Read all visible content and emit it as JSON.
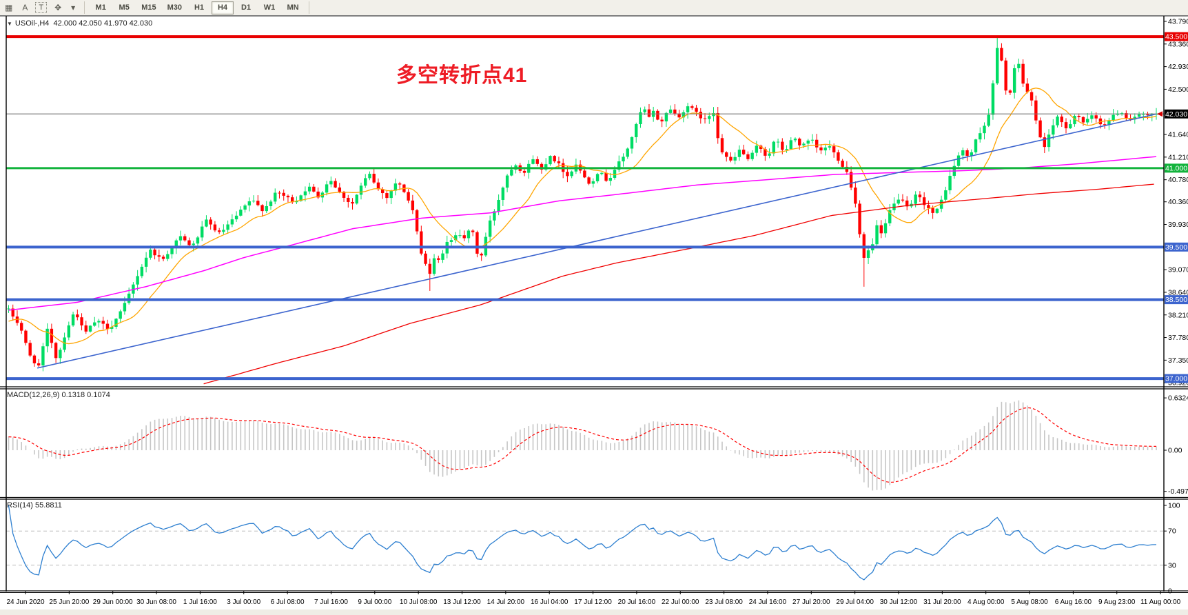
{
  "toolbar": {
    "icons": [
      {
        "name": "grid-properties-icon",
        "glyph": "▦"
      },
      {
        "name": "annotate-letter-icon",
        "glyph": "A"
      },
      {
        "name": "textbox-icon",
        "glyph": "T",
        "boxed": true
      },
      {
        "name": "cursor-arrows-icon",
        "glyph": "✥"
      },
      {
        "name": "icon-dropdown-arrow",
        "glyph": "▾"
      }
    ],
    "timeframes": [
      "M1",
      "M5",
      "M15",
      "M30",
      "H1",
      "H4",
      "D1",
      "W1",
      "MN"
    ],
    "active_timeframe": "H4"
  },
  "symbol_bar": {
    "arrow": "▼",
    "text": "USOil-,H4  42.000 42.050 41.970 42.030"
  },
  "annotation": {
    "text": "多空转折点41",
    "color": "#EE1C25"
  },
  "indicators": {
    "macd": {
      "label": "MACD(12,26,9) 0.1318 0.1074",
      "params": [
        12,
        26,
        9
      ],
      "value": 0.1318,
      "signal_value": 0.1074,
      "hist_color": "#C6C6C6",
      "signal_color": "#FF0000",
      "axis_ticks": [
        {
          "label": "0.6324",
          "value": 0.6324
        },
        {
          "label": "0.00",
          "value": 0
        },
        {
          "label": "-0.497",
          "value": -0.497
        }
      ]
    },
    "rsi": {
      "label": "RSI(14) 55.8811",
      "period": 14,
      "value": 55.8811,
      "line_color": "#2D7FD0",
      "level_line_color": "#BBBBBB",
      "levels": [
        70,
        30
      ],
      "axis_ticks": [
        {
          "label": "100",
          "value": 100
        },
        {
          "label": "70",
          "value": 70
        },
        {
          "label": "30",
          "value": 30
        },
        {
          "label": "0",
          "value": 0
        }
      ]
    }
  },
  "chart_data": {
    "type": "candlestick",
    "symbol": "USOil-",
    "timeframe": "H4",
    "current_ohlc": {
      "open": "42.000",
      "high": "42.050",
      "low": "41.970",
      "close": "42.030"
    },
    "bars": 268,
    "up_color": "#00DC64",
    "down_color": "#FF0000",
    "price_axis_ticks": [
      {
        "label": "43.790",
        "value": 43.79
      },
      {
        "label": "43.360",
        "value": 43.36
      },
      {
        "label": "42.930",
        "value": 42.93
      },
      {
        "label": "42.500",
        "value": 42.5
      },
      {
        "label": "41.640",
        "value": 41.64
      },
      {
        "label": "41.210",
        "value": 41.21
      },
      {
        "label": "40.780",
        "value": 40.78
      },
      {
        "label": "40.360",
        "value": 40.36
      },
      {
        "label": "39.930",
        "value": 39.93
      },
      {
        "label": "39.070",
        "value": 39.07
      },
      {
        "label": "38.640",
        "value": 38.64
      },
      {
        "label": "38.210",
        "value": 38.21
      },
      {
        "label": "37.780",
        "value": 37.78
      },
      {
        "label": "37.350",
        "value": 37.35
      },
      {
        "label": "36.920",
        "value": 36.92
      }
    ],
    "price_badges": [
      {
        "label": "43.500",
        "value": 43.5,
        "color": "#E80000"
      },
      {
        "label": "42.030",
        "value": 42.03,
        "color": "#000000"
      },
      {
        "label": "41.000",
        "value": 41.0,
        "color": "#12B33C"
      },
      {
        "label": "39.500",
        "value": 39.5,
        "color": "#3C64CE"
      },
      {
        "label": "38.500",
        "value": 38.5,
        "color": "#3C64CE"
      },
      {
        "label": "37.000",
        "value": 37.0,
        "color": "#3C64CE"
      }
    ],
    "hlines": [
      {
        "price": 43.5,
        "color": "#E80000",
        "w": 4
      },
      {
        "price": 42.03,
        "color": "#808080",
        "w": 1
      },
      {
        "price": 41.0,
        "color": "#12B33C",
        "w": 3
      },
      {
        "price": 39.5,
        "color": "#3C64CE",
        "w": 4
      },
      {
        "price": 38.5,
        "color": "#3C64CE",
        "w": 4
      },
      {
        "price": 37.0,
        "color": "#3C64CE",
        "w": 4
      }
    ],
    "trendline": {
      "from_frac": 0.025,
      "from_price": 37.2,
      "to_frac": 1.0,
      "to_price": 42.03,
      "color": "#3C64CE"
    },
    "moving_averages": {
      "orange": {
        "color": "#FFA500",
        "type": "sma",
        "period": 13
      },
      "magenta": {
        "color": "#FF00FF",
        "points": [
          [
            0,
            38.3
          ],
          [
            0.06,
            38.45
          ],
          [
            0.12,
            38.75
          ],
          [
            0.17,
            39.05
          ],
          [
            0.205,
            39.3
          ],
          [
            0.24,
            39.5
          ],
          [
            0.3,
            39.85
          ],
          [
            0.36,
            40.05
          ],
          [
            0.42,
            40.15
          ],
          [
            0.48,
            40.38
          ],
          [
            0.53,
            40.5
          ],
          [
            0.6,
            40.68
          ],
          [
            0.66,
            40.78
          ],
          [
            0.72,
            40.88
          ],
          [
            0.78,
            40.92
          ],
          [
            0.83,
            40.95
          ],
          [
            0.88,
            41
          ],
          [
            0.93,
            41.08
          ],
          [
            1,
            41.22
          ]
        ]
      },
      "red": {
        "color": "#F00000",
        "points": [
          [
            0.17,
            36.9
          ],
          [
            0.235,
            37.3
          ],
          [
            0.292,
            37.62
          ],
          [
            0.35,
            38.05
          ],
          [
            0.411,
            38.4
          ],
          [
            0.483,
            38.95
          ],
          [
            0.53,
            39.2
          ],
          [
            0.6,
            39.5
          ],
          [
            0.65,
            39.72
          ],
          [
            0.717,
            40.1
          ],
          [
            0.787,
            40.3
          ],
          [
            0.84,
            40.4
          ],
          [
            0.9,
            40.52
          ],
          [
            0.95,
            40.6
          ],
          [
            1,
            40.7
          ]
        ]
      }
    },
    "close_waypoints": [
      [
        0,
        38.3
      ],
      [
        0.01,
        38
      ],
      [
        0.018,
        37.45
      ],
      [
        0.026,
        37.22
      ],
      [
        0.034,
        37.95
      ],
      [
        0.042,
        37.35
      ],
      [
        0.05,
        37.9
      ],
      [
        0.058,
        38.3
      ],
      [
        0.066,
        37.85
      ],
      [
        0.076,
        38.1
      ],
      [
        0.088,
        37.95
      ],
      [
        0.1,
        38.35
      ],
      [
        0.112,
        38.95
      ],
      [
        0.123,
        39.45
      ],
      [
        0.134,
        39.25
      ],
      [
        0.149,
        39.7
      ],
      [
        0.16,
        39.5
      ],
      [
        0.172,
        40
      ],
      [
        0.184,
        39.75
      ],
      [
        0.199,
        40.1
      ],
      [
        0.211,
        40.4
      ],
      [
        0.222,
        40.2
      ],
      [
        0.234,
        40.55
      ],
      [
        0.249,
        40.35
      ],
      [
        0.261,
        40.65
      ],
      [
        0.27,
        40.45
      ],
      [
        0.28,
        40.8
      ],
      [
        0.288,
        40.55
      ],
      [
        0.299,
        40.3
      ],
      [
        0.307,
        40.65
      ],
      [
        0.314,
        40.9
      ],
      [
        0.322,
        40.6
      ],
      [
        0.33,
        40.45
      ],
      [
        0.338,
        40.75
      ],
      [
        0.345,
        40.55
      ],
      [
        0.353,
        40.15
      ],
      [
        0.357,
        39.6
      ],
      [
        0.361,
        39.3
      ],
      [
        0.368,
        38.95
      ],
      [
        0.372,
        39.4
      ],
      [
        0.376,
        39.15
      ],
      [
        0.38,
        39.6
      ],
      [
        0.384,
        39.55
      ],
      [
        0.391,
        39.8
      ],
      [
        0.399,
        39.65
      ],
      [
        0.403,
        39.95
      ],
      [
        0.407,
        39.45
      ],
      [
        0.411,
        39.25
      ],
      [
        0.418,
        39.9
      ],
      [
        0.426,
        40.35
      ],
      [
        0.434,
        40.85
      ],
      [
        0.441,
        41.1
      ],
      [
        0.449,
        40.9
      ],
      [
        0.457,
        41.2
      ],
      [
        0.464,
        40.95
      ],
      [
        0.472,
        41.25
      ],
      [
        0.48,
        41.05
      ],
      [
        0.487,
        40.85
      ],
      [
        0.495,
        41.1
      ],
      [
        0.499,
        40.9
      ],
      [
        0.507,
        40.7
      ],
      [
        0.514,
        40.95
      ],
      [
        0.522,
        40.75
      ],
      [
        0.53,
        41.05
      ],
      [
        0.537,
        41.25
      ],
      [
        0.545,
        41.7
      ],
      [
        0.549,
        41.95
      ],
      [
        0.553,
        42.2
      ],
      [
        0.557,
        41.9
      ],
      [
        0.561,
        42.1
      ],
      [
        0.568,
        41.85
      ],
      [
        0.576,
        42.15
      ],
      [
        0.584,
        41.95
      ],
      [
        0.591,
        42.2
      ],
      [
        0.599,
        42.05
      ],
      [
        0.607,
        41.9
      ],
      [
        0.614,
        42.1
      ],
      [
        0.618,
        41.6
      ],
      [
        0.622,
        41.3
      ],
      [
        0.63,
        41.1
      ],
      [
        0.637,
        41.35
      ],
      [
        0.645,
        41.15
      ],
      [
        0.653,
        41.45
      ],
      [
        0.661,
        41.2
      ],
      [
        0.668,
        41.55
      ],
      [
        0.676,
        41.3
      ],
      [
        0.684,
        41.6
      ],
      [
        0.691,
        41.4
      ],
      [
        0.699,
        41.55
      ],
      [
        0.707,
        41.3
      ],
      [
        0.714,
        41.45
      ],
      [
        0.722,
        41.2
      ],
      [
        0.73,
        40.95
      ],
      [
        0.737,
        40.45
      ],
      [
        0.741,
        39.85
      ],
      [
        0.745,
        39.3
      ],
      [
        0.753,
        39.55
      ],
      [
        0.757,
        39.95
      ],
      [
        0.761,
        39.7
      ],
      [
        0.768,
        40.2
      ],
      [
        0.776,
        40.45
      ],
      [
        0.784,
        40.2
      ],
      [
        0.791,
        40.5
      ],
      [
        0.799,
        40.3
      ],
      [
        0.807,
        40.1
      ],
      [
        0.814,
        40.45
      ],
      [
        0.822,
        40.95
      ],
      [
        0.83,
        41.35
      ],
      [
        0.837,
        41.2
      ],
      [
        0.845,
        41.65
      ],
      [
        0.853,
        41.9
      ],
      [
        0.857,
        42.45
      ],
      [
        0.861,
        43.3
      ],
      [
        0.865,
        43.05
      ],
      [
        0.868,
        42.55
      ],
      [
        0.872,
        42.35
      ],
      [
        0.876,
        42.85
      ],
      [
        0.88,
        43
      ],
      [
        0.884,
        42.6
      ],
      [
        0.891,
        42.3
      ],
      [
        0.895,
        41.95
      ],
      [
        0.899,
        41.55
      ],
      [
        0.903,
        41.4
      ],
      [
        0.907,
        41.7
      ],
      [
        0.914,
        41.95
      ],
      [
        0.922,
        41.75
      ],
      [
        0.93,
        42.05
      ],
      [
        0.937,
        41.85
      ],
      [
        0.945,
        42
      ],
      [
        0.953,
        41.82
      ],
      [
        0.961,
        41.95
      ],
      [
        0.968,
        42.1
      ],
      [
        0.976,
        41.92
      ],
      [
        0.984,
        42.02
      ],
      [
        0.992,
        41.98
      ],
      [
        1,
        42.03
      ]
    ],
    "time_axis_labels": [
      "24 Jun 2020",
      "25 Jun 20:00",
      "29 Jun 00:00",
      "30 Jun 08:00",
      "1 Jul 16:00",
      "3 Jul 00:00",
      "6 Jul 08:00",
      "7 Jul 16:00",
      "9 Jul 00:00",
      "10 Jul 08:00",
      "13 Jul 12:00",
      "14 Jul 20:00",
      "16 Jul 04:00",
      "17 Jul 12:00",
      "20 Jul 16:00",
      "22 Jul 00:00",
      "23 Jul 08:00",
      "24 Jul 16:00",
      "27 Jul 20:00",
      "29 Jul 04:00",
      "30 Jul 12:00",
      "31 Jul 20:00",
      "4 Aug 00:00",
      "5 Aug 08:00",
      "6 Aug 16:00",
      "9 Aug 23:00",
      "11 Aug 00:00"
    ]
  }
}
